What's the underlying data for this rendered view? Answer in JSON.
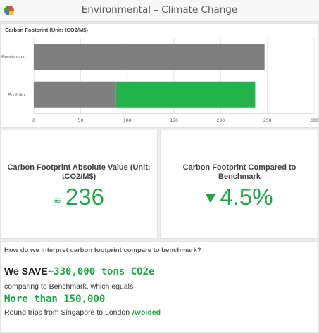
{
  "header": {
    "title": "Environmental – Climate Change",
    "logo_colors": [
      "#3d9c3d",
      "#e64e3c",
      "#f2c12e",
      "#3a7dc4"
    ]
  },
  "chart_data": {
    "type": "bar",
    "orientation": "horizontal",
    "stacked": true,
    "title": "Carbon Footprint (Unit: tCO2/M$)",
    "categories": [
      "Benchmark",
      "Portfolio"
    ],
    "series": [
      {
        "values": [
          247,
          88
        ],
        "color": "#7f7f7f"
      },
      {
        "values": [
          0,
          149
        ],
        "color": "#22b34a"
      }
    ],
    "xlim": [
      0,
      300
    ],
    "xticks": [
      0,
      50,
      100,
      150,
      200,
      250,
      300
    ],
    "grid": true
  },
  "kpi_absolute": {
    "title": "Carbon Footprint Absolute Value (Unit: tCO2/M$)",
    "value": "236",
    "icon": "approx-icon",
    "icon_glyph": "≋"
  },
  "kpi_compare": {
    "title": "Carbon Footprint Compared to Benchmark",
    "value": "4.5%",
    "icon": "triangle-down-icon"
  },
  "interpretation": {
    "question": "How do we interpret carbon footprint compare to benchmark?",
    "save_prefix": "We SAVE",
    "save_amount": "~330,000 tons CO2e",
    "comparing_text": "comparing to Benchmark, which equals",
    "more_than": "More than 150,000",
    "trips_text": "Round trips from Singapore to London ",
    "avoided": "Avoided"
  },
  "colors": {
    "accent_green": "#1ea744",
    "bar_gray": "#7f7f7f",
    "bar_green": "#22b34a"
  }
}
